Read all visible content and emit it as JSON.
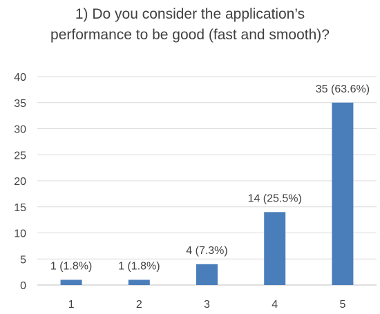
{
  "chart_data": {
    "type": "bar",
    "title_lines": [
      "1) Do you consider the application’s",
      "performance to be good (fast and smooth)?"
    ],
    "categories": [
      "1",
      "2",
      "3",
      "4",
      "5"
    ],
    "values": [
      1,
      1,
      4,
      14,
      35
    ],
    "data_labels": [
      "1 (1.8%)",
      "1 (1.8%)",
      "4 (7.3%)",
      "14 (25.5%)",
      "35 (63.6%)"
    ],
    "ylim": [
      0,
      40
    ],
    "yticks": [
      0,
      5,
      10,
      15,
      20,
      25,
      30,
      35,
      40
    ],
    "xlabel": "",
    "ylabel": "",
    "grid": true,
    "legend": "none",
    "bar_color": "#4a7ebb",
    "grid_color": "#d9d9d9"
  }
}
